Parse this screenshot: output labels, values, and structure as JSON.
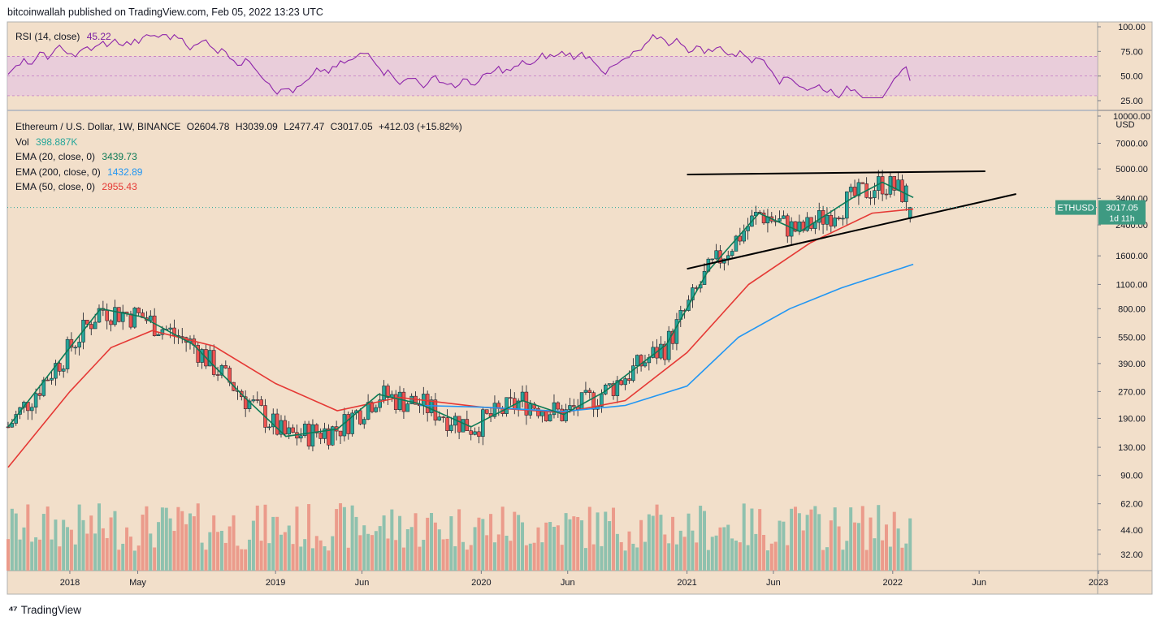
{
  "header": {
    "publisher": "bitcoinwallah published on TradingView.com, Feb 05, 2022 13:23 UTC"
  },
  "branding": {
    "logo_icon": "tradingview-logo-icon",
    "name": "TradingView"
  },
  "rsi_panel": {
    "label": "RSI (14, close)",
    "value": "45.22",
    "value_color": "#7b1fa2",
    "line_color": "#8e24aa",
    "band_color": "#e1bee7",
    "band": [
      30,
      70
    ],
    "axis_ticks": [
      "100.00",
      "75.00",
      "50.00",
      "25.00"
    ]
  },
  "main_panel": {
    "symbol_label": "Ethereum / U.S. Dollar, 1W, BINANCE",
    "ohlc": {
      "open": "O2604.78",
      "high": "H3039.09",
      "low": "L2477.47",
      "close": "C3017.05",
      "change": "+412.03 (+15.82%)"
    },
    "vol_label": "Vol",
    "vol_value": "398.887K",
    "indicators": [
      {
        "label": "EMA (20, close, 0)",
        "value": "3439.73",
        "color": "#0d7a56"
      },
      {
        "label": "EMA (200, close, 0)",
        "value": "1432.89",
        "color": "#2196f3"
      },
      {
        "label": "EMA (50, close, 0)",
        "value": "2955.43",
        "color": "#e53935"
      }
    ],
    "currency": "USD",
    "price_axis_ticks": [
      "10000.00",
      "7000.00",
      "5000.00",
      "3400.00",
      "2400.00",
      "1600.00",
      "1100.00",
      "800.00",
      "550.00",
      "390.00",
      "270.00",
      "190.00",
      "130.00",
      "90.00",
      "62.00",
      "44.00",
      "32.00"
    ],
    "time_axis_ticks": [
      "2018",
      "May",
      "2019",
      "Jun",
      "2020",
      "Jun",
      "2021",
      "Jun",
      "2022",
      "Jun",
      "2023"
    ],
    "price_tag": {
      "symbol": "ETHUSD",
      "price": "3017.05",
      "countdown": "1d 11h"
    },
    "colors": {
      "background": "#f2dfca",
      "up": "#26a69a",
      "down": "#ef5350",
      "vol_up": "#8fc1ae",
      "vol_down": "#eb9b8b",
      "trendline": "#000000"
    }
  },
  "chart_data": {
    "type": "candlestick",
    "timeframe": "1W",
    "log_scale": true,
    "x_range": [
      "2017-09",
      "2023-01"
    ],
    "y_range": [
      25,
      10000
    ],
    "ema20": [
      [
        2017.7,
        170
      ],
      [
        2018.0,
        480
      ],
      [
        2018.15,
        800
      ],
      [
        2018.35,
        720
      ],
      [
        2018.6,
        500
      ],
      [
        2018.85,
        250
      ],
      [
        2019.05,
        150
      ],
      [
        2019.3,
        165
      ],
      [
        2019.5,
        260
      ],
      [
        2019.7,
        230
      ],
      [
        2019.95,
        170
      ],
      [
        2020.2,
        240
      ],
      [
        2020.4,
        200
      ],
      [
        2020.6,
        270
      ],
      [
        2020.9,
        500
      ],
      [
        2021.1,
        1300
      ],
      [
        2021.35,
        2800
      ],
      [
        2021.55,
        2200
      ],
      [
        2021.8,
        3400
      ],
      [
        2021.95,
        4200
      ],
      [
        2022.1,
        3440
      ]
    ],
    "ema50": [
      [
        2017.7,
        100
      ],
      [
        2018.0,
        270
      ],
      [
        2018.2,
        480
      ],
      [
        2018.4,
        600
      ],
      [
        2018.7,
        490
      ],
      [
        2019.0,
        300
      ],
      [
        2019.3,
        210
      ],
      [
        2019.6,
        250
      ],
      [
        2020.0,
        220
      ],
      [
        2020.4,
        205
      ],
      [
        2020.7,
        240
      ],
      [
        2021.0,
        450
      ],
      [
        2021.3,
        1100
      ],
      [
        2021.6,
        1900
      ],
      [
        2021.9,
        2800
      ],
      [
        2022.1,
        2955
      ]
    ],
    "ema200": [
      [
        2019.7,
        225
      ],
      [
        2020.0,
        220
      ],
      [
        2020.4,
        208
      ],
      [
        2020.7,
        225
      ],
      [
        2021.0,
        290
      ],
      [
        2021.25,
        550
      ],
      [
        2021.5,
        800
      ],
      [
        2021.75,
        1050
      ],
      [
        2022.1,
        1433
      ]
    ],
    "trendlines": [
      {
        "from": [
          2021.0,
          4650
        ],
        "to": [
          2022.45,
          4850
        ]
      },
      {
        "from": [
          2021.0,
          1350
        ],
        "to": [
          2022.6,
          3600
        ]
      }
    ],
    "last": {
      "open": 2604.78,
      "high": 3039.09,
      "low": 2477.47,
      "close": 3017.05,
      "change": 412.03,
      "change_pct": 15.82,
      "volume": "398.887K"
    },
    "rsi_last": 45.22
  }
}
